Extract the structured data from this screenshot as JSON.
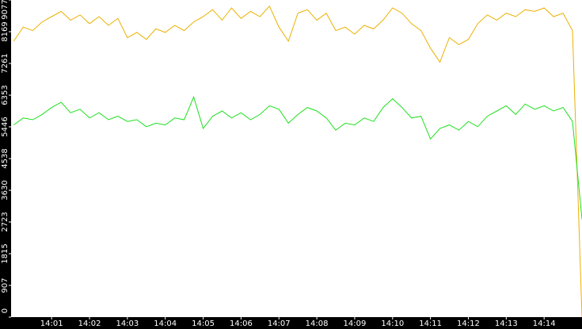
{
  "chart_data": {
    "type": "line",
    "x": [
      0,
      0.25,
      0.5,
      0.75,
      1,
      1.25,
      1.5,
      1.75,
      2,
      2.25,
      2.5,
      2.75,
      3,
      3.25,
      3.5,
      3.75,
      4,
      4.25,
      4.5,
      4.75,
      5,
      5.25,
      5.5,
      5.75,
      6,
      6.25,
      6.5,
      6.75,
      7,
      7.25,
      7.5,
      7.75,
      8,
      8.25,
      8.5,
      8.75,
      9,
      9.25,
      9.5,
      9.75,
      10,
      10.25,
      10.5,
      10.75,
      11,
      11.25,
      11.5,
      11.75,
      12,
      12.25,
      12.5,
      12.75,
      13,
      13.25,
      13.5,
      13.75,
      14,
      14.25,
      14.5,
      14.75,
      15
    ],
    "series": [
      {
        "color": "#ebb100",
        "values": [
          7900,
          8300,
          8200,
          8450,
          8600,
          8750,
          8500,
          8650,
          8400,
          8600,
          8350,
          8550,
          8000,
          8150,
          7950,
          8250,
          8150,
          8350,
          8200,
          8450,
          8600,
          8800,
          8500,
          8850,
          8550,
          8750,
          8600,
          8900,
          8300,
          7900,
          8700,
          8800,
          8500,
          8700,
          8200,
          8300,
          8100,
          8350,
          8250,
          8500,
          8850,
          8700,
          8400,
          8200,
          7700,
          7300,
          8000,
          7800,
          7950,
          8400,
          8650,
          8500,
          8700,
          8600,
          8800,
          8750,
          8850,
          8600,
          8700,
          8200,
          0
        ]
      },
      {
        "color": "#1ee01e",
        "values": [
          5500,
          5700,
          5650,
          5800,
          6000,
          6150,
          5850,
          5950,
          5700,
          5850,
          5650,
          5750,
          5600,
          5650,
          5450,
          5550,
          5500,
          5700,
          5650,
          6300,
          5400,
          5750,
          5900,
          5700,
          5850,
          5650,
          5800,
          6050,
          5950,
          5550,
          5800,
          6000,
          5900,
          5700,
          5350,
          5550,
          5500,
          5700,
          5600,
          6000,
          6250,
          6000,
          5700,
          5750,
          5100,
          5400,
          5500,
          5350,
          5600,
          5450,
          5750,
          5900,
          6050,
          5800,
          6100,
          5950,
          6050,
          5900,
          6000,
          5600,
          2800
        ]
      }
    ],
    "xlim": [
      -0.07,
      15
    ],
    "xticks": [
      {
        "value": 1,
        "label": "14:01"
      },
      {
        "value": 2,
        "label": "14:02"
      },
      {
        "value": 3,
        "label": "14:03"
      },
      {
        "value": 4,
        "label": "14:04"
      },
      {
        "value": 5,
        "label": "14:05"
      },
      {
        "value": 6,
        "label": "14:06"
      },
      {
        "value": 7,
        "label": "14:07"
      },
      {
        "value": 8,
        "label": "14:08"
      },
      {
        "value": 9,
        "label": "14:09"
      },
      {
        "value": 10,
        "label": "14:10"
      },
      {
        "value": 11,
        "label": "14:11"
      },
      {
        "value": 12,
        "label": "14:12"
      },
      {
        "value": 13,
        "label": "14:13"
      },
      {
        "value": 14,
        "label": "14:14"
      }
    ],
    "ylim": [
      0,
      9077
    ],
    "yticks": [
      0,
      907,
      1815,
      2723,
      3630,
      4538,
      5446,
      6353,
      7261,
      8169,
      9077
    ]
  }
}
